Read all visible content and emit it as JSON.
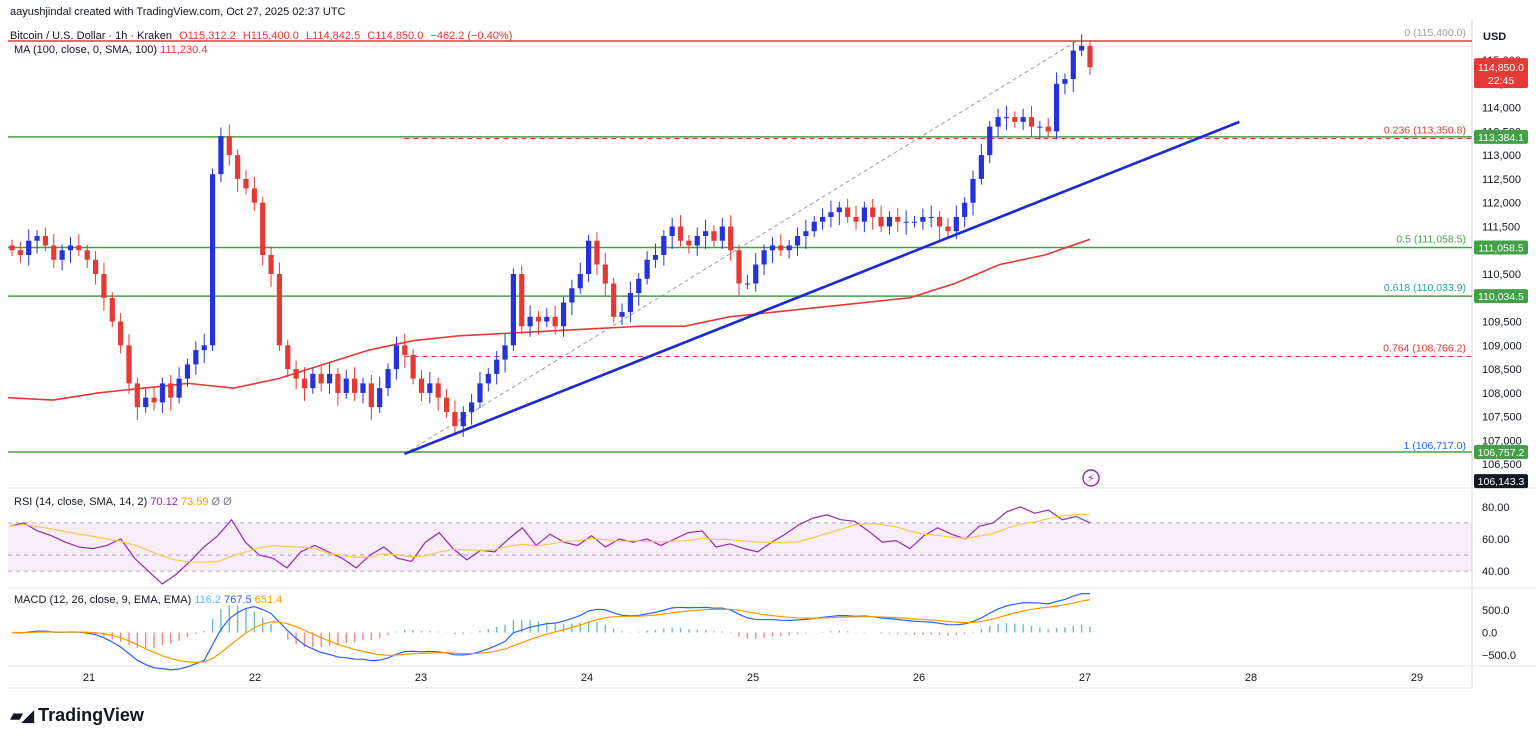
{
  "header": {
    "credit": "aayushjindal created with TradingView.com, Oct 27, 2025 02:37 UTC"
  },
  "symbol": {
    "name": "Bitcoin / U.S. Dollar · 1h · Kraken",
    "open": "O115,312.2",
    "high": "H115,400.0",
    "low": "L114,842.5",
    "close": "C114,850.0",
    "change": "−462.2 (−0.40%)"
  },
  "ma": {
    "label": "MA (100, close, 0, SMA, 100)",
    "value": "111,230.4"
  },
  "rsi": {
    "label": "RSI (14, close, SMA, 14, 2)",
    "value": "70.12",
    "sma": "73.59",
    "extra": "Ø Ø"
  },
  "macd": {
    "label": "MACD (12, 26, close, 9, EMA, EMA)",
    "hist": "116.2",
    "macd": "767.5",
    "signal": "651.4"
  },
  "currency": "USD",
  "logo": "TradingView",
  "colors": {
    "up": "#2632d9",
    "down": "#e53935",
    "trend": "#1a2bd6",
    "ma": "#e53935",
    "support": "#43a047",
    "fib_red": "#e53935",
    "rsi": "#9c27b0",
    "rsi_sma": "#f9c74f",
    "macd": "#2962ff",
    "signal": "#ff9800"
  },
  "chart_data": {
    "type": "candlestick",
    "x_ticks": [
      "21",
      "22",
      "23",
      "24",
      "25",
      "26",
      "27",
      "28",
      "29"
    ],
    "price_ticks": [
      "115,000",
      "114,500",
      "114,000",
      "113,500",
      "113,000",
      "112,500",
      "112,000",
      "111,500",
      "111,000",
      "110,500",
      "110,000",
      "109,500",
      "109,000",
      "108,500",
      "108,000",
      "107,500",
      "107,000",
      "106,500"
    ],
    "price_range": [
      106000,
      115800
    ],
    "last_price_label": "114,850.0",
    "countdown": "22:45",
    "horizontal_levels": [
      {
        "price": 113384.1,
        "label": "113,384.1"
      },
      {
        "price": 111058.5,
        "label": "111,058.5"
      },
      {
        "price": 110034.5,
        "label": "110,034.5"
      },
      {
        "price": 106757.2,
        "label": "106,757.2"
      },
      {
        "price": 106143.3,
        "label": "106,143.3"
      }
    ],
    "fib_levels": [
      {
        "ratio": "0",
        "price": "115,400.0",
        "value": 115400,
        "text": "0 (115,400.0)"
      },
      {
        "ratio": "0.236",
        "price": "113,350.8",
        "value": 113350.8,
        "text": "0.236 (113,350.8)"
      },
      {
        "ratio": "0.5",
        "price": "111,058.5",
        "value": 111058.5,
        "text": "0.5 (111,058.5)"
      },
      {
        "ratio": "0.618",
        "price": "110,033.9",
        "value": 110033.9,
        "text": "0.618 (110,033.9)"
      },
      {
        "ratio": "0.764",
        "price": "108,766.2",
        "value": 108766.2,
        "text": "0.764 (108,766.2)"
      },
      {
        "ratio": "1",
        "price": "106,717.0",
        "value": 106717,
        "text": "1 (106,717.0)"
      }
    ],
    "trendline": {
      "from": {
        "day": 22.9,
        "price": 106717
      },
      "to": {
        "day": 27.93,
        "price": 113700
      }
    },
    "fib_diagonal": {
      "from": {
        "day": 22.9,
        "price": 106717
      },
      "to": {
        "day": 26.95,
        "price": 115400
      }
    },
    "closes": [
      111000,
      110900,
      111200,
      111300,
      111100,
      110800,
      111000,
      111100,
      111000,
      110800,
      110500,
      110000,
      109500,
      109000,
      108200,
      107700,
      107900,
      107800,
      108200,
      107900,
      108300,
      108600,
      108900,
      109000,
      112600,
      113400,
      113000,
      112500,
      112300,
      112000,
      110900,
      110500,
      109000,
      108500,
      108300,
      108100,
      108400,
      108200,
      108400,
      108000,
      108300,
      108000,
      108200,
      107700,
      108100,
      108500,
      109000,
      108800,
      108300,
      108000,
      108200,
      107900,
      107600,
      107300,
      107600,
      107800,
      108200,
      108400,
      108700,
      109000,
      110500,
      109400,
      109600,
      109500,
      109600,
      109400,
      109900,
      110200,
      110500,
      111200,
      110700,
      110300,
      109600,
      109700,
      110100,
      110400,
      110800,
      110900,
      111300,
      111500,
      111200,
      111100,
      111300,
      111400,
      111200,
      111500,
      111000,
      110300,
      110300,
      110700,
      111000,
      111100,
      111000,
      111100,
      111300,
      111400,
      111600,
      111700,
      111800,
      111900,
      111700,
      111600,
      111900,
      111700,
      111500,
      111700,
      111600,
      111600,
      111600,
      111700,
      111700,
      111500,
      111400,
      111700,
      112000,
      112500,
      113000,
      113600,
      113800,
      113800,
      113700,
      113800,
      113600,
      113600,
      113500,
      114500,
      114600,
      115200,
      115300,
      114850
    ],
    "ma100": [
      107900,
      107850,
      108000,
      108100,
      108200,
      108100,
      108300,
      108600,
      108900,
      109100,
      109200,
      109250,
      109300,
      109350,
      109400,
      109400,
      109600,
      109700,
      109800,
      109900,
      110000,
      110300,
      110700,
      110900,
      111230
    ],
    "rsi_values": [
      68,
      70,
      65,
      62,
      58,
      55,
      54,
      56,
      60,
      48,
      40,
      32,
      38,
      46,
      55,
      62,
      72,
      58,
      50,
      48,
      42,
      52,
      56,
      52,
      48,
      42,
      50,
      55,
      48,
      46,
      58,
      64,
      54,
      47,
      53,
      52,
      60,
      67,
      56,
      63,
      58,
      56,
      62,
      55,
      60,
      58,
      60,
      56,
      60,
      64,
      65,
      55,
      57,
      54,
      52,
      58,
      63,
      69,
      73,
      75,
      72,
      71,
      65,
      58,
      59,
      54,
      62,
      67,
      63,
      60,
      68,
      70,
      77,
      80,
      76,
      78,
      72,
      74,
      70
    ],
    "rsi_ticks": [
      "80.00",
      "60.00",
      "40.00"
    ],
    "macd_ticks": [
      "500.0",
      "0.0",
      "−500.0"
    ]
  }
}
